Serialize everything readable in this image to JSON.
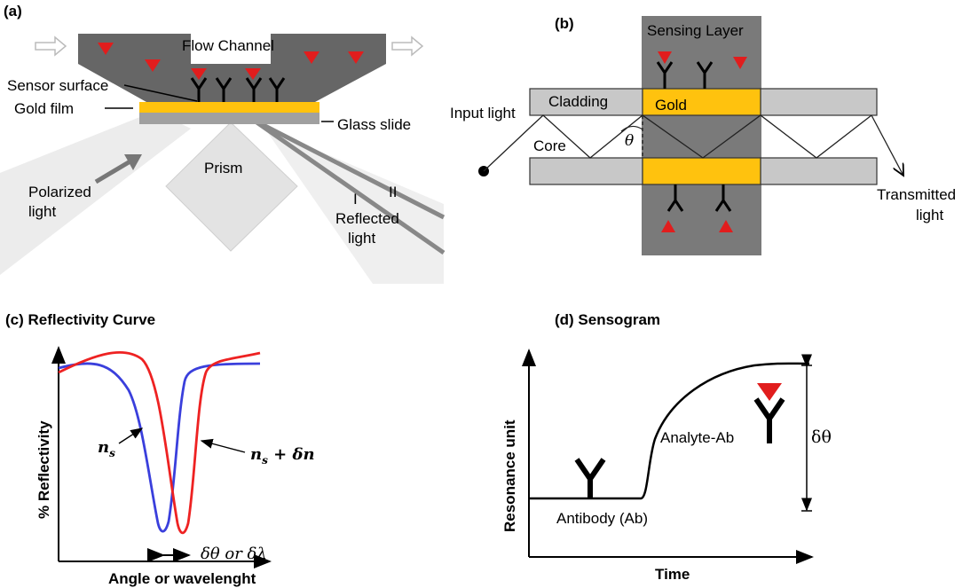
{
  "panel_a": {
    "tag": "(a)",
    "flow_channel": "Flow Channel",
    "sensor_surface": "Sensor surface",
    "gold_film": "Gold film",
    "glass_slide": "Glass slide",
    "prism": "Prism",
    "polarized_1": "Polarized",
    "polarized_2": "light",
    "reflected_1": "Reflected",
    "reflected_2": "light",
    "mark_i": "I",
    "mark_ii": "II"
  },
  "panel_b": {
    "tag": "(b)",
    "sensing_layer": "Sensing Layer",
    "cladding": "Cladding",
    "gold": "Gold",
    "input_light": "Input light",
    "core": "Core",
    "theta": "θ",
    "transmitted_1": "Transmitted",
    "transmitted_2": "light"
  },
  "panel_c": {
    "title": "(c) Reflectivity Curve",
    "ylabel": "%  Reflectivity",
    "xlabel": "Angle or wavelenght",
    "ns": "n",
    "ns_sub": "s",
    "ns_dn_1": "n",
    "ns_dn_sub": "s",
    "ns_dn_2": " + δn",
    "shift": "δθ or δλ",
    "colors": {
      "blue": "#3a3fdc",
      "red": "#ee2222"
    }
  },
  "panel_d": {
    "title": "(d) Sensogram",
    "ylabel": "Resonance unit",
    "xlabel": "Time",
    "antibody": "Antibody (Ab)",
    "analyte_ab": "Analyte-Ab",
    "delta_theta": "δθ"
  },
  "colors": {
    "gold": "#ffc20e",
    "channel": "#666666",
    "analyte": "#e11d1d",
    "cladding": "#c8c8c8"
  }
}
